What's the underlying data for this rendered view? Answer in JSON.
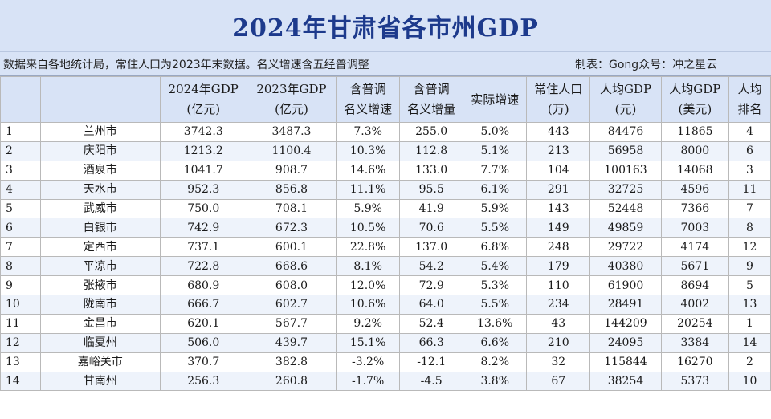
{
  "title": "2024年甘肃省各市州GDP",
  "info": {
    "source": "数据来自各地统计局，常住人口为2023年末数据。名义增速含五经普调整",
    "credit": "制表：Gong众号：冲之星云"
  },
  "columns": [
    {
      "line1": "",
      "line2": ""
    },
    {
      "line1": "",
      "line2": ""
    },
    {
      "line1": "2024年GDP",
      "line2": "(亿元)"
    },
    {
      "line1": "2023年GDP",
      "line2": "(亿元)"
    },
    {
      "line1": "含普调",
      "line2": "名义增速"
    },
    {
      "line1": "含普调",
      "line2": "名义增量"
    },
    {
      "line1": "实际增速",
      "line2": ""
    },
    {
      "line1": "常住人口",
      "line2": "(万)"
    },
    {
      "line1": "人均GDP",
      "line2": "(元)"
    },
    {
      "line1": "人均GDP",
      "line2": "(美元)"
    },
    {
      "line1": "人均",
      "line2": "排名"
    }
  ],
  "rows": [
    [
      "1",
      "兰州市",
      "3742.3",
      "3487.3",
      "7.3%",
      "255.0",
      "5.0%",
      "443",
      "84476",
      "11865",
      "4"
    ],
    [
      "2",
      "庆阳市",
      "1213.2",
      "1100.4",
      "10.3%",
      "112.8",
      "5.1%",
      "213",
      "56958",
      "8000",
      "6"
    ],
    [
      "3",
      "酒泉市",
      "1041.7",
      "908.7",
      "14.6%",
      "133.0",
      "7.7%",
      "104",
      "100163",
      "14068",
      "3"
    ],
    [
      "4",
      "天水市",
      "952.3",
      "856.8",
      "11.1%",
      "95.5",
      "6.1%",
      "291",
      "32725",
      "4596",
      "11"
    ],
    [
      "5",
      "武威市",
      "750.0",
      "708.1",
      "5.9%",
      "41.9",
      "5.9%",
      "143",
      "52448",
      "7366",
      "7"
    ],
    [
      "6",
      "白银市",
      "742.9",
      "672.3",
      "10.5%",
      "70.6",
      "5.5%",
      "149",
      "49859",
      "7003",
      "8"
    ],
    [
      "7",
      "定西市",
      "737.1",
      "600.1",
      "22.8%",
      "137.0",
      "6.8%",
      "248",
      "29722",
      "4174",
      "12"
    ],
    [
      "8",
      "平凉市",
      "722.8",
      "668.6",
      "8.1%",
      "54.2",
      "5.4%",
      "179",
      "40380",
      "5671",
      "9"
    ],
    [
      "9",
      "张掖市",
      "680.9",
      "608.0",
      "12.0%",
      "72.9",
      "5.3%",
      "110",
      "61900",
      "8694",
      "5"
    ],
    [
      "10",
      "陇南市",
      "666.7",
      "602.7",
      "10.6%",
      "64.0",
      "5.5%",
      "234",
      "28491",
      "4002",
      "13"
    ],
    [
      "11",
      "金昌市",
      "620.1",
      "567.7",
      "9.2%",
      "52.4",
      "13.6%",
      "43",
      "144209",
      "20254",
      "1"
    ],
    [
      "12",
      "临夏州",
      "506.0",
      "439.7",
      "15.1%",
      "66.3",
      "6.6%",
      "210",
      "24095",
      "3384",
      "14"
    ],
    [
      "13",
      "嘉峪关市",
      "370.7",
      "382.8",
      "-3.2%",
      "-12.1",
      "8.2%",
      "32",
      "115844",
      "16270",
      "2"
    ],
    [
      "14",
      "甘南州",
      "256.3",
      "260.8",
      "-1.7%",
      "-4.5",
      "3.8%",
      "67",
      "38254",
      "5373",
      "10"
    ]
  ]
}
